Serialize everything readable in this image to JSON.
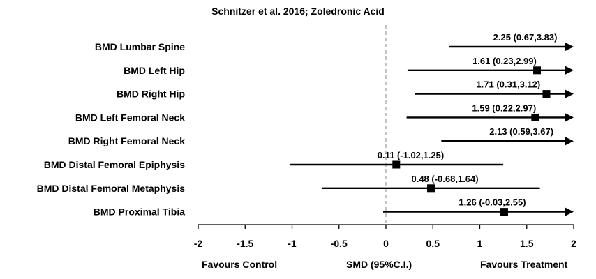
{
  "chart_data": {
    "type": "forest",
    "title": "Schnitzer et al. 2016; Zoledronic Acid",
    "xlabel": "SMD (95%C.I.)",
    "xlim": [
      -2,
      2
    ],
    "xticks": [
      "-2",
      "-1.5",
      "-1",
      "-0.5",
      "0",
      "0.5",
      "1",
      "1.5",
      "2"
    ],
    "reference_line": 0,
    "left_annotation": "Favours  Control",
    "right_annotation": "Favours  Treatment",
    "rows": [
      {
        "label": "BMD Lumbar Spine",
        "estimate": 2.25,
        "lower": 0.67,
        "upper": 3.83,
        "text": "2.25 (0.67,3.83)"
      },
      {
        "label": "BMD Left Hip",
        "estimate": 1.61,
        "lower": 0.23,
        "upper": 2.99,
        "text": "1.61 (0.23,2.99)"
      },
      {
        "label": "BMD Right Hip",
        "estimate": 1.71,
        "lower": 0.31,
        "upper": 3.12,
        "text": "1.71 (0.31,3.12)"
      },
      {
        "label": "BMD Left Femoral Neck",
        "estimate": 1.59,
        "lower": 0.22,
        "upper": 2.97,
        "text": "1.59 (0.22,2.97)"
      },
      {
        "label": "BMD Right Femoral Neck",
        "estimate": 2.13,
        "lower": 0.59,
        "upper": 3.67,
        "text": "2.13 (0.59,3.67)"
      },
      {
        "label": "BMD Distal Femoral Epiphysis",
        "estimate": 0.11,
        "lower": -1.02,
        "upper": 1.25,
        "text": "0.11 (-1.02,1.25)"
      },
      {
        "label": "BMD Distal Femoral Metaphysis",
        "estimate": 0.48,
        "lower": -0.68,
        "upper": 1.64,
        "text": "0.48 (-0.68,1.64)"
      },
      {
        "label": "BMD Proximal Tibia",
        "estimate": 1.26,
        "lower": -0.03,
        "upper": 2.55,
        "text": "1.26 (-0.03,2.55)"
      }
    ]
  }
}
